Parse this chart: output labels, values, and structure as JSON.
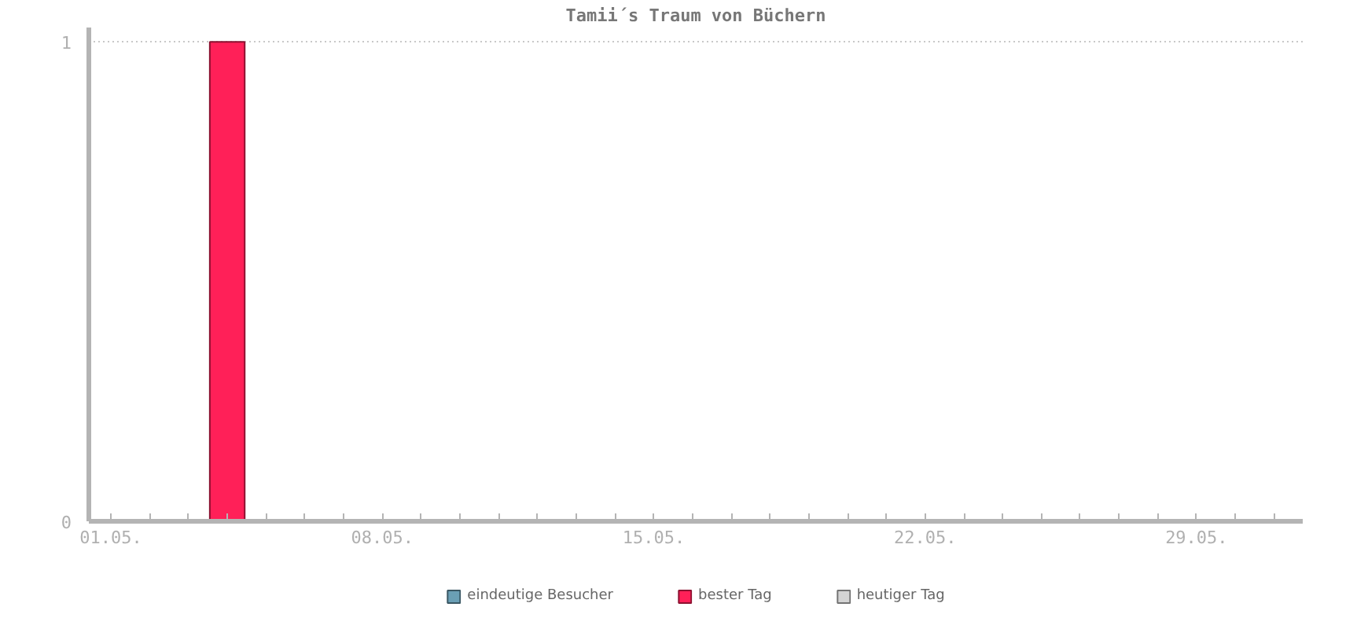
{
  "chart_data": {
    "type": "bar",
    "title": "Tamii´s Traum von Büchern",
    "categories": [
      "01.05.",
      null,
      null,
      null,
      null,
      null,
      null,
      "08.05.",
      null,
      null,
      null,
      null,
      null,
      null,
      "15.05.",
      null,
      null,
      null,
      null,
      null,
      null,
      "22.05.",
      null,
      null,
      null,
      null,
      null,
      null,
      "29.05.",
      null,
      null
    ],
    "series": [
      {
        "name": "eindeutige Besucher",
        "color": "#6a9fb5",
        "values": [
          null,
          null,
          null,
          null,
          null,
          null,
          null,
          null,
          null,
          null,
          null,
          null,
          null,
          null,
          null,
          null,
          null,
          null,
          null,
          null,
          null,
          null,
          null,
          null,
          null,
          null,
          null,
          null,
          null,
          null,
          null
        ]
      },
      {
        "name": "bester Tag",
        "color": "#ff2058",
        "values": [
          null,
          null,
          null,
          1,
          null,
          null,
          null,
          null,
          null,
          null,
          null,
          null,
          null,
          null,
          null,
          null,
          null,
          null,
          null,
          null,
          null,
          null,
          null,
          null,
          null,
          null,
          null,
          null,
          null,
          null,
          null
        ]
      },
      {
        "name": "heutiger Tag",
        "color": "#d4d4d4",
        "values": [
          null,
          null,
          null,
          null,
          null,
          null,
          null,
          null,
          null,
          null,
          null,
          null,
          null,
          null,
          null,
          null,
          null,
          null,
          null,
          null,
          null,
          null,
          null,
          null,
          null,
          null,
          null,
          null,
          null,
          null,
          null
        ]
      }
    ],
    "ylim": [
      0,
      1.03
    ],
    "yticks": [
      0,
      1
    ],
    "grid": "y",
    "legend": "bottom"
  }
}
